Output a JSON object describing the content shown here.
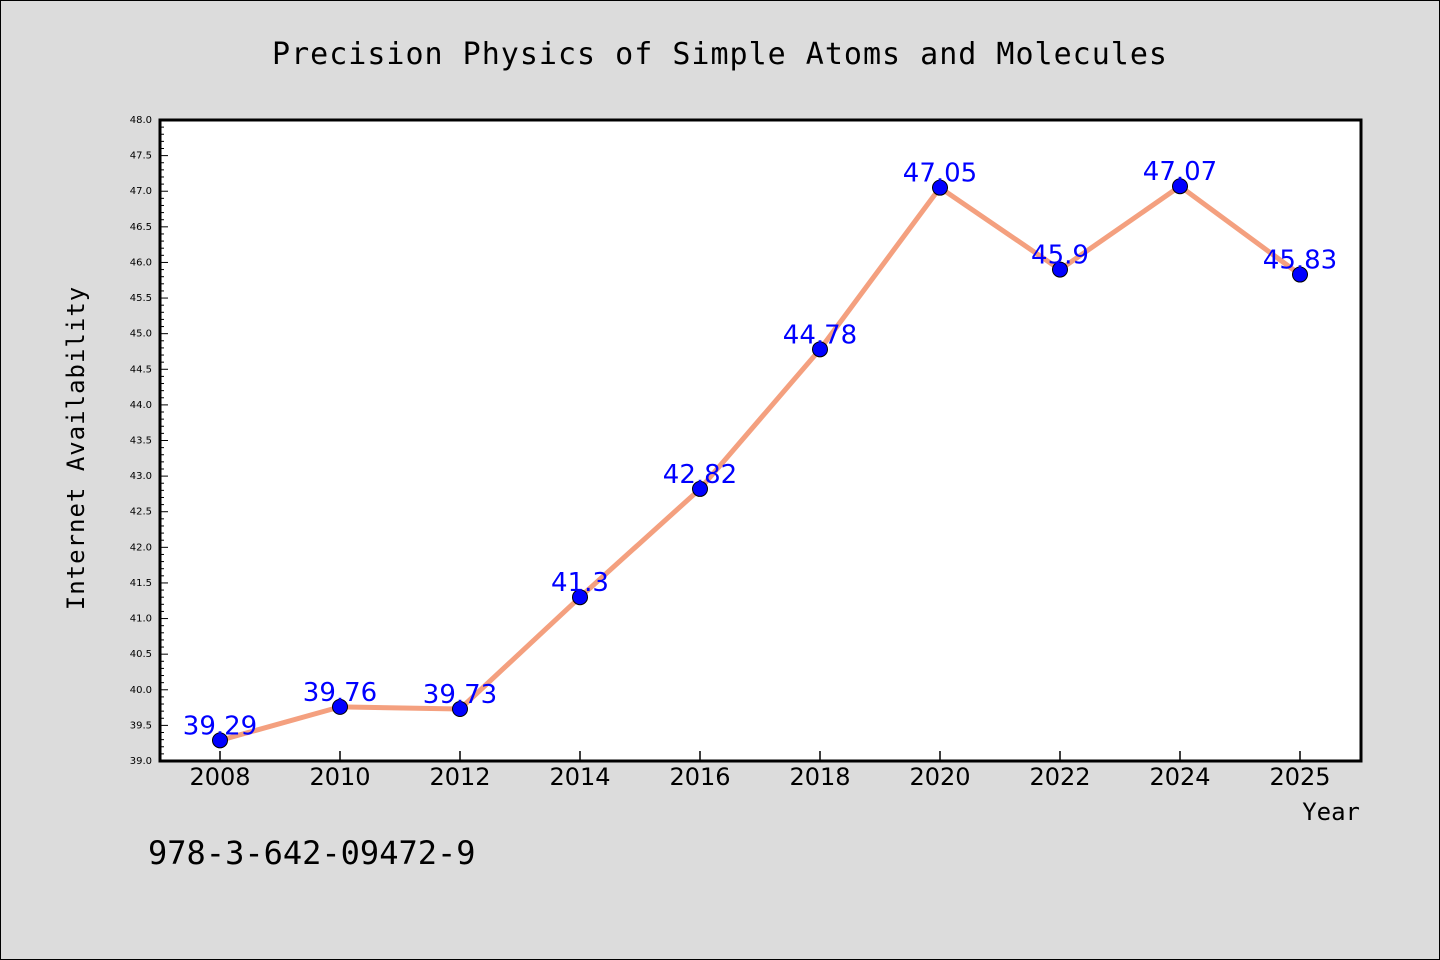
{
  "chart_data": {
    "type": "line",
    "title": "Precision Physics of Simple Atoms and Molecules",
    "xlabel": "Year",
    "ylabel": "Internet Availability",
    "categories": [
      "2008",
      "2010",
      "2012",
      "2014",
      "2016",
      "2018",
      "2020",
      "2022",
      "2024",
      "2025"
    ],
    "series": [
      {
        "values": [
          39.29,
          39.76,
          39.73,
          41.3,
          42.82,
          44.78,
          47.05,
          45.9,
          47.07,
          45.83
        ],
        "data_labels": [
          "39.29",
          "39.76",
          "39.73",
          "41.3",
          "42.82",
          "44.78",
          "47.05",
          "45.9",
          "47.07",
          "45.83"
        ]
      }
    ],
    "ylim": [
      39.0,
      48.0
    ],
    "y_ticks": [
      "39.0",
      "39.5",
      "40.0",
      "40.5",
      "41.0",
      "41.5",
      "42.0",
      "42.5",
      "43.0",
      "43.5",
      "44.0",
      "44.5",
      "45.0",
      "45.5",
      "46.0",
      "46.5",
      "47.0",
      "47.5",
      "48.0"
    ],
    "grid": false,
    "colors": {
      "line": "#f4a07f",
      "marker": "#0000ff",
      "label": "#0000ff",
      "background": "#dcdcdc",
      "plot_background": "#ffffff"
    }
  },
  "footer_text": "978-3-642-09472-9"
}
